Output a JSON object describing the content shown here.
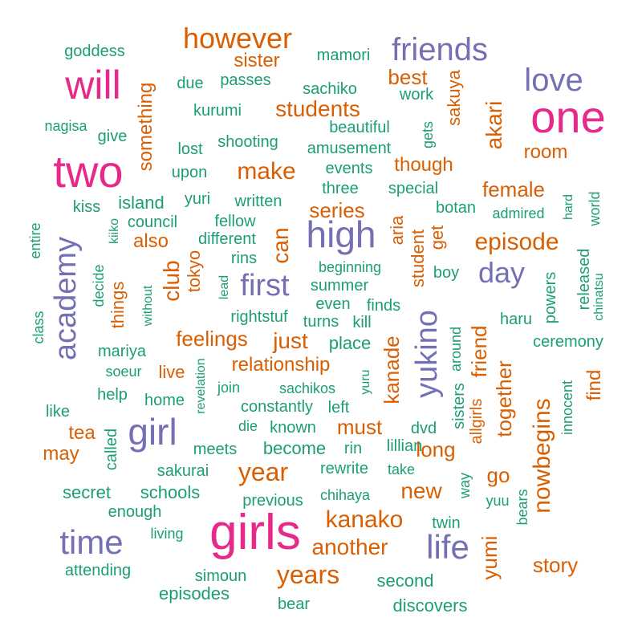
{
  "colors": {
    "pink": "#E7298A",
    "purple": "#7570B3",
    "orange": "#D95F02",
    "green": "#1B9E77"
  },
  "words": [
    {
      "text": "girls",
      "color": "pink"
    },
    {
      "text": "one",
      "color": "pink"
    },
    {
      "text": "two",
      "color": "pink"
    },
    {
      "text": "will",
      "color": "pink"
    },
    {
      "text": "high",
      "color": "purple"
    },
    {
      "text": "girl",
      "color": "purple"
    },
    {
      "text": "time",
      "color": "purple"
    },
    {
      "text": "life",
      "color": "purple"
    },
    {
      "text": "love",
      "color": "purple"
    },
    {
      "text": "friends",
      "color": "purple"
    },
    {
      "text": "first",
      "color": "purple"
    },
    {
      "text": "day",
      "color": "purple"
    },
    {
      "text": "academy",
      "color": "purple"
    },
    {
      "text": "yukino",
      "color": "purple"
    },
    {
      "text": "however",
      "color": "orange"
    },
    {
      "text": "episode",
      "color": "orange"
    },
    {
      "text": "years",
      "color": "orange"
    },
    {
      "text": "year",
      "color": "orange"
    },
    {
      "text": "kanako",
      "color": "orange"
    },
    {
      "text": "make",
      "color": "orange"
    },
    {
      "text": "another",
      "color": "orange"
    },
    {
      "text": "nowbegins",
      "color": "orange"
    },
    {
      "text": "students",
      "color": "orange"
    },
    {
      "text": "new",
      "color": "orange"
    },
    {
      "text": "just",
      "color": "orange"
    },
    {
      "text": "relationship",
      "color": "orange"
    },
    {
      "text": "feelings",
      "color": "orange"
    },
    {
      "text": "female",
      "color": "orange"
    },
    {
      "text": "story",
      "color": "orange"
    },
    {
      "text": "must",
      "color": "orange"
    },
    {
      "text": "long",
      "color": "orange"
    },
    {
      "text": "series",
      "color": "orange"
    },
    {
      "text": "best",
      "color": "orange"
    },
    {
      "text": "room",
      "color": "orange"
    },
    {
      "text": "though",
      "color": "orange"
    },
    {
      "text": "sister",
      "color": "orange"
    },
    {
      "text": "also",
      "color": "orange"
    },
    {
      "text": "live",
      "color": "orange"
    },
    {
      "text": "tea",
      "color": "orange"
    },
    {
      "text": "may",
      "color": "orange"
    },
    {
      "text": "go",
      "color": "orange"
    },
    {
      "text": "can",
      "color": "orange"
    },
    {
      "text": "club",
      "color": "orange"
    },
    {
      "text": "together",
      "color": "orange"
    },
    {
      "text": "akari",
      "color": "orange"
    },
    {
      "text": "kanade",
      "color": "orange"
    },
    {
      "text": "friend",
      "color": "orange"
    },
    {
      "text": "yumi",
      "color": "orange"
    },
    {
      "text": "something",
      "color": "orange"
    },
    {
      "text": "tokyo",
      "color": "orange"
    },
    {
      "text": "student",
      "color": "orange"
    },
    {
      "text": "things",
      "color": "orange"
    },
    {
      "text": "sakuya",
      "color": "orange"
    },
    {
      "text": "find",
      "color": "orange"
    },
    {
      "text": "aria",
      "color": "orange"
    },
    {
      "text": "get",
      "color": "orange"
    },
    {
      "text": "allgirls",
      "color": "orange"
    },
    {
      "text": "goddess",
      "color": "green"
    },
    {
      "text": "due",
      "color": "green"
    },
    {
      "text": "passes",
      "color": "green"
    },
    {
      "text": "mamori",
      "color": "green"
    },
    {
      "text": "sachiko",
      "color": "green"
    },
    {
      "text": "work",
      "color": "green"
    },
    {
      "text": "kurumi",
      "color": "green"
    },
    {
      "text": "nagisa",
      "color": "green"
    },
    {
      "text": "give",
      "color": "green"
    },
    {
      "text": "beautiful",
      "color": "green"
    },
    {
      "text": "lost",
      "color": "green"
    },
    {
      "text": "shooting",
      "color": "green"
    },
    {
      "text": "amusement",
      "color": "green"
    },
    {
      "text": "upon",
      "color": "green"
    },
    {
      "text": "events",
      "color": "green"
    },
    {
      "text": "three",
      "color": "green"
    },
    {
      "text": "special",
      "color": "green"
    },
    {
      "text": "kiss",
      "color": "green"
    },
    {
      "text": "island",
      "color": "green"
    },
    {
      "text": "yuri",
      "color": "green"
    },
    {
      "text": "written",
      "color": "green"
    },
    {
      "text": "botan",
      "color": "green"
    },
    {
      "text": "admired",
      "color": "green"
    },
    {
      "text": "council",
      "color": "green"
    },
    {
      "text": "fellow",
      "color": "green"
    },
    {
      "text": "different",
      "color": "green"
    },
    {
      "text": "rins",
      "color": "green"
    },
    {
      "text": "beginning",
      "color": "green"
    },
    {
      "text": "boy",
      "color": "green"
    },
    {
      "text": "summer",
      "color": "green"
    },
    {
      "text": "rightstuf",
      "color": "green"
    },
    {
      "text": "even",
      "color": "green"
    },
    {
      "text": "finds",
      "color": "green"
    },
    {
      "text": "turns",
      "color": "green"
    },
    {
      "text": "kill",
      "color": "green"
    },
    {
      "text": "haru",
      "color": "green"
    },
    {
      "text": "mariya",
      "color": "green"
    },
    {
      "text": "place",
      "color": "green"
    },
    {
      "text": "ceremony",
      "color": "green"
    },
    {
      "text": "soeur",
      "color": "green"
    },
    {
      "text": "sachikos",
      "color": "green"
    },
    {
      "text": "help",
      "color": "green"
    },
    {
      "text": "home",
      "color": "green"
    },
    {
      "text": "join",
      "color": "green"
    },
    {
      "text": "constantly",
      "color": "green"
    },
    {
      "text": "left",
      "color": "green"
    },
    {
      "text": "like",
      "color": "green"
    },
    {
      "text": "die",
      "color": "green"
    },
    {
      "text": "known",
      "color": "green"
    },
    {
      "text": "dvd",
      "color": "green"
    },
    {
      "text": "meets",
      "color": "green"
    },
    {
      "text": "become",
      "color": "green"
    },
    {
      "text": "rin",
      "color": "green"
    },
    {
      "text": "lillian",
      "color": "green"
    },
    {
      "text": "sakurai",
      "color": "green"
    },
    {
      "text": "rewrite",
      "color": "green"
    },
    {
      "text": "take",
      "color": "green"
    },
    {
      "text": "secret",
      "color": "green"
    },
    {
      "text": "schools",
      "color": "green"
    },
    {
      "text": "previous",
      "color": "green"
    },
    {
      "text": "chihaya",
      "color": "green"
    },
    {
      "text": "yuu",
      "color": "green"
    },
    {
      "text": "enough",
      "color": "green"
    },
    {
      "text": "twin",
      "color": "green"
    },
    {
      "text": "living",
      "color": "green"
    },
    {
      "text": "attending",
      "color": "green"
    },
    {
      "text": "simoun",
      "color": "green"
    },
    {
      "text": "second",
      "color": "green"
    },
    {
      "text": "episodes",
      "color": "green"
    },
    {
      "text": "bear",
      "color": "green"
    },
    {
      "text": "discovers",
      "color": "green"
    },
    {
      "text": "entire",
      "color": "green"
    },
    {
      "text": "class",
      "color": "green"
    },
    {
      "text": "kiiko",
      "color": "green"
    },
    {
      "text": "decide",
      "color": "green"
    },
    {
      "text": "without",
      "color": "green"
    },
    {
      "text": "lead",
      "color": "green"
    },
    {
      "text": "revelation",
      "color": "green"
    },
    {
      "text": "yuru",
      "color": "green"
    },
    {
      "text": "around",
      "color": "green"
    },
    {
      "text": "sisters",
      "color": "green"
    },
    {
      "text": "called",
      "color": "green"
    },
    {
      "text": "way",
      "color": "green"
    },
    {
      "text": "bears",
      "color": "green"
    },
    {
      "text": "innocent",
      "color": "green"
    },
    {
      "text": "powers",
      "color": "green"
    },
    {
      "text": "released",
      "color": "green"
    },
    {
      "text": "chinatsu",
      "color": "green"
    },
    {
      "text": "hard",
      "color": "green"
    },
    {
      "text": "world",
      "color": "green"
    },
    {
      "text": "gets",
      "color": "green"
    }
  ]
}
